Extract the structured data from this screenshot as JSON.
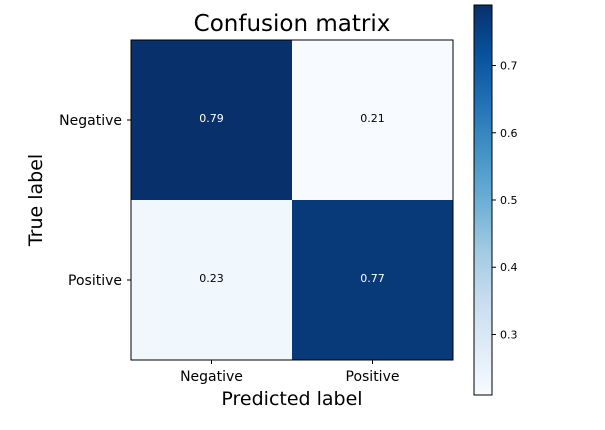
{
  "chart_data": {
    "type": "heatmap",
    "title": "Confusion matrix",
    "xlabel": "Predicted label",
    "ylabel": "True label",
    "x_categories": [
      "Negative",
      "Positive"
    ],
    "y_categories": [
      "Negative",
      "Positive"
    ],
    "values": [
      [
        0.79,
        0.21
      ],
      [
        0.23,
        0.77
      ]
    ],
    "value_labels": [
      [
        "0.79",
        "0.21"
      ],
      [
        "0.23",
        "0.77"
      ]
    ],
    "colormap": "Blues",
    "color_range": [
      0.21,
      0.79
    ],
    "colorbar": {
      "ticks": [
        0.3,
        0.4,
        0.5,
        0.6,
        0.7
      ],
      "tick_labels": [
        "0.3",
        "0.4",
        "0.5",
        "0.6",
        "0.7"
      ]
    },
    "grid": false
  }
}
